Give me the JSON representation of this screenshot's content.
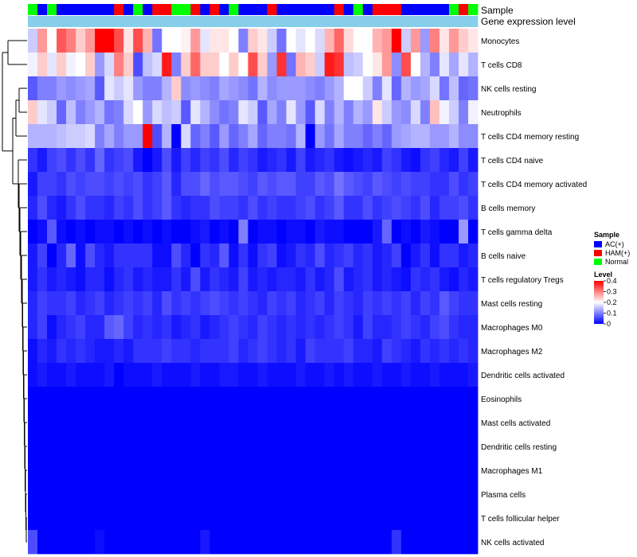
{
  "chart_data": {
    "type": "heatmap",
    "title": "",
    "annotation_tracks": [
      "Sample",
      "Gene expression level"
    ],
    "samples": [
      "N",
      "A",
      "N",
      "A",
      "A",
      "A",
      "A",
      "A",
      "A",
      "H",
      "A",
      "N",
      "A",
      "H",
      "H",
      "N",
      "N",
      "H",
      "A",
      "H",
      "A",
      "N",
      "A",
      "A",
      "A",
      "H",
      "A",
      "A",
      "A",
      "A",
      "A",
      "A",
      "H",
      "A",
      "N",
      "A",
      "H",
      "H",
      "H",
      "A",
      "A",
      "A",
      "A",
      "A",
      "N",
      "H",
      "N"
    ],
    "rows": [
      "Monocytes",
      "T cells CD8",
      "NK cells resting",
      "Neutrophils",
      "T cells CD4 memory resting",
      "T cells CD4 naive",
      "T cells CD4 memory activated",
      "B cells memory",
      "T cells gamma delta",
      "B cells naive",
      "T cells regulatory  Tregs",
      "Mast cells resting",
      "Macrophages M0",
      "Macrophages M2",
      "Dendritic cells activated",
      "Eosinophils",
      "Mast cells activated",
      "Dendritic cells resting",
      "Macrophages M1",
      "Plasma cells",
      "T cells follicular helper",
      "NK cells activated"
    ],
    "values": [
      [
        0.16,
        0.28,
        0.2,
        0.33,
        0.3,
        0.24,
        0.28,
        0.4,
        0.4,
        0.34,
        0.22,
        0.34,
        0.26,
        0.09,
        0.2,
        0.2,
        0.21,
        0.28,
        0.18,
        0.22,
        0.22,
        0.2,
        0.1,
        0.24,
        0.22,
        0.16,
        0.09,
        0.2,
        0.18,
        0.2,
        0.17,
        0.26,
        0.32,
        0.23,
        0.2,
        0.2,
        0.26,
        0.28,
        0.4,
        0.16,
        0.28,
        0.12,
        0.3,
        0.22,
        0.28,
        0.24,
        0.22
      ],
      [
        0.19,
        0.24,
        0.18,
        0.24,
        0.19,
        0.2,
        0.24,
        0.12,
        0.17,
        0.3,
        0.24,
        0.06,
        0.15,
        0.17,
        0.38,
        0.1,
        0.24,
        0.32,
        0.24,
        0.24,
        0.2,
        0.24,
        0.2,
        0.34,
        0.24,
        0.12,
        0.36,
        0.09,
        0.26,
        0.24,
        0.16,
        0.38,
        0.36,
        0.15,
        0.16,
        0.2,
        0.22,
        0.28,
        0.11,
        0.34,
        0.2,
        0.14,
        0.1,
        0.18,
        0.13,
        0.18,
        0.14
      ],
      [
        0.07,
        0.1,
        0.1,
        0.12,
        0.11,
        0.12,
        0.13,
        0.07,
        0.18,
        0.16,
        0.18,
        0.12,
        0.1,
        0.1,
        0.14,
        0.24,
        0.11,
        0.12,
        0.11,
        0.1,
        0.13,
        0.12,
        0.11,
        0.09,
        0.14,
        0.11,
        0.12,
        0.12,
        0.12,
        0.11,
        0.1,
        0.12,
        0.14,
        0.2,
        0.2,
        0.16,
        0.1,
        0.18,
        0.08,
        0.14,
        0.12,
        0.13,
        0.17,
        0.09,
        0.15,
        0.08,
        0.09
      ],
      [
        0.24,
        0.18,
        0.16,
        0.08,
        0.15,
        0.1,
        0.12,
        0.14,
        0.09,
        0.1,
        0.17,
        0.2,
        0.12,
        0.17,
        0.15,
        0.16,
        0.07,
        0.18,
        0.14,
        0.11,
        0.09,
        0.1,
        0.18,
        0.16,
        0.07,
        0.13,
        0.1,
        0.18,
        0.12,
        0.07,
        0.17,
        0.1,
        0.14,
        0.1,
        0.14,
        0.12,
        0.22,
        0.16,
        0.12,
        0.11,
        0.17,
        0.1,
        0.25,
        0.19,
        0.16,
        0.1,
        0.19
      ],
      [
        0.14,
        0.14,
        0.14,
        0.15,
        0.16,
        0.16,
        0.17,
        0.1,
        0.13,
        0.1,
        0.12,
        0.12,
        0.4,
        0.06,
        0.14,
        0.0,
        0.17,
        0.08,
        0.1,
        0.07,
        0.12,
        0.08,
        0.1,
        0.13,
        0.08,
        0.1,
        0.1,
        0.09,
        0.14,
        0.0,
        0.12,
        0.09,
        0.13,
        0.1,
        0.1,
        0.08,
        0.1,
        0.08,
        0.12,
        0.13,
        0.14,
        0.14,
        0.12,
        0.12,
        0.14,
        0.11,
        0.11
      ],
      [
        0.04,
        0.02,
        0.05,
        0.06,
        0.04,
        0.06,
        0.04,
        0.08,
        0.04,
        0.05,
        0.06,
        0.02,
        0.0,
        0.02,
        0.06,
        0.02,
        0.05,
        0.03,
        0.05,
        0.04,
        0.06,
        0.03,
        0.05,
        0.04,
        0.02,
        0.03,
        0.04,
        0.02,
        0.05,
        0.02,
        0.03,
        0.04,
        0.02,
        0.01,
        0.02,
        0.03,
        0.02,
        0.05,
        0.04,
        0.02,
        0.01,
        0.04,
        0.05,
        0.03,
        0.02,
        0.05,
        0.02
      ],
      [
        0.02,
        0.05,
        0.05,
        0.04,
        0.06,
        0.05,
        0.06,
        0.06,
        0.05,
        0.06,
        0.05,
        0.06,
        0.04,
        0.05,
        0.07,
        0.03,
        0.06,
        0.06,
        0.08,
        0.06,
        0.07,
        0.07,
        0.06,
        0.05,
        0.07,
        0.06,
        0.07,
        0.07,
        0.05,
        0.05,
        0.07,
        0.06,
        0.09,
        0.07,
        0.06,
        0.05,
        0.07,
        0.06,
        0.05,
        0.06,
        0.05,
        0.05,
        0.04,
        0.04,
        0.06,
        0.04,
        0.05
      ],
      [
        0.03,
        0.06,
        0.03,
        0.02,
        0.04,
        0.06,
        0.04,
        0.04,
        0.03,
        0.05,
        0.04,
        0.06,
        0.04,
        0.05,
        0.07,
        0.04,
        0.03,
        0.04,
        0.04,
        0.06,
        0.05,
        0.05,
        0.04,
        0.06,
        0.04,
        0.05,
        0.04,
        0.04,
        0.05,
        0.06,
        0.04,
        0.05,
        0.07,
        0.04,
        0.04,
        0.06,
        0.04,
        0.05,
        0.06,
        0.05,
        0.04,
        0.06,
        0.03,
        0.05,
        0.05,
        0.06,
        0.04
      ],
      [
        0.0,
        0.01,
        0.07,
        0.01,
        0.0,
        0.01,
        0.0,
        0.01,
        0.01,
        0.0,
        0.01,
        0.0,
        0.01,
        0.0,
        0.01,
        0.0,
        0.0,
        0.01,
        0.02,
        0.0,
        0.01,
        0.0,
        0.1,
        0.0,
        0.01,
        0.01,
        0.0,
        0.01,
        0.01,
        0.0,
        0.02,
        0.01,
        0.01,
        0.0,
        0.0,
        0.0,
        0.02,
        0.08,
        0.0,
        0.01,
        0.0,
        0.02,
        0.01,
        0.0,
        0.0,
        0.12,
        0.0
      ],
      [
        0.02,
        0.05,
        0.0,
        0.03,
        0.08,
        0.01,
        0.06,
        0.03,
        0.02,
        0.04,
        0.04,
        0.04,
        0.04,
        0.01,
        0.01,
        0.06,
        0.03,
        0.0,
        0.04,
        0.03,
        0.07,
        0.01,
        0.04,
        0.01,
        0.04,
        0.05,
        0.01,
        0.02,
        0.04,
        0.03,
        0.06,
        0.03,
        0.04,
        0.05,
        0.03,
        0.04,
        0.02,
        0.03,
        0.05,
        0.0,
        0.02,
        0.04,
        0.01,
        0.04,
        0.04,
        0.02,
        0.03
      ],
      [
        0.02,
        0.04,
        0.02,
        0.03,
        0.02,
        0.01,
        0.03,
        0.03,
        0.01,
        0.03,
        0.04,
        0.02,
        0.03,
        0.02,
        0.02,
        0.04,
        0.02,
        0.06,
        0.02,
        0.04,
        0.03,
        0.02,
        0.05,
        0.02,
        0.03,
        0.02,
        0.03,
        0.03,
        0.02,
        0.04,
        0.02,
        0.03,
        0.06,
        0.02,
        0.03,
        0.04,
        0.02,
        0.03,
        0.02,
        0.01,
        0.04,
        0.03,
        0.04,
        0.02,
        0.01,
        0.03,
        0.02
      ],
      [
        0.03,
        0.05,
        0.04,
        0.04,
        0.05,
        0.03,
        0.04,
        0.05,
        0.03,
        0.04,
        0.05,
        0.04,
        0.05,
        0.03,
        0.06,
        0.04,
        0.05,
        0.04,
        0.05,
        0.06,
        0.05,
        0.04,
        0.05,
        0.04,
        0.03,
        0.05,
        0.04,
        0.05,
        0.03,
        0.04,
        0.05,
        0.03,
        0.05,
        0.04,
        0.03,
        0.05,
        0.04,
        0.05,
        0.04,
        0.05,
        0.03,
        0.05,
        0.04,
        0.07,
        0.05,
        0.04,
        0.04
      ],
      [
        0.03,
        0.05,
        0.01,
        0.03,
        0.04,
        0.05,
        0.03,
        0.03,
        0.07,
        0.08,
        0.05,
        0.03,
        0.04,
        0.03,
        0.04,
        0.02,
        0.03,
        0.04,
        0.02,
        0.03,
        0.04,
        0.05,
        0.04,
        0.03,
        0.05,
        0.04,
        0.03,
        0.04,
        0.03,
        0.04,
        0.03,
        0.04,
        0.05,
        0.04,
        0.02,
        0.05,
        0.03,
        0.03,
        0.04,
        0.05,
        0.04,
        0.03,
        0.05,
        0.06,
        0.04,
        0.03,
        0.03
      ],
      [
        0.01,
        0.03,
        0.02,
        0.04,
        0.03,
        0.04,
        0.03,
        0.02,
        0.02,
        0.03,
        0.02,
        0.04,
        0.04,
        0.04,
        0.05,
        0.04,
        0.04,
        0.03,
        0.04,
        0.04,
        0.04,
        0.05,
        0.03,
        0.04,
        0.05,
        0.04,
        0.03,
        0.04,
        0.02,
        0.05,
        0.04,
        0.04,
        0.04,
        0.05,
        0.03,
        0.03,
        0.02,
        0.05,
        0.04,
        0.03,
        0.02,
        0.04,
        0.03,
        0.04,
        0.03,
        0.04,
        0.03
      ],
      [
        0.01,
        0.02,
        0.01,
        0.01,
        0.02,
        0.01,
        0.01,
        0.01,
        0.02,
        0.0,
        0.01,
        0.01,
        0.01,
        0.02,
        0.01,
        0.01,
        0.01,
        0.02,
        0.01,
        0.01,
        0.02,
        0.02,
        0.01,
        0.01,
        0.02,
        0.01,
        0.01,
        0.01,
        0.02,
        0.01,
        0.01,
        0.02,
        0.01,
        0.02,
        0.01,
        0.01,
        0.02,
        0.01,
        0.01,
        0.02,
        0.01,
        0.01,
        0.02,
        0.01,
        0.01,
        0.01,
        0.02
      ],
      [
        0,
        0,
        0,
        0,
        0,
        0,
        0,
        0,
        0,
        0,
        0,
        0,
        0,
        0,
        0,
        0,
        0,
        0,
        0,
        0,
        0,
        0,
        0,
        0,
        0,
        0,
        0,
        0,
        0,
        0,
        0,
        0,
        0,
        0,
        0,
        0,
        0,
        0,
        0,
        0,
        0,
        0,
        0,
        0,
        0,
        0,
        0
      ],
      [
        0,
        0,
        0,
        0,
        0,
        0,
        0,
        0,
        0,
        0,
        0,
        0,
        0,
        0,
        0,
        0,
        0,
        0,
        0,
        0,
        0,
        0,
        0,
        0,
        0,
        0,
        0,
        0,
        0,
        0,
        0,
        0,
        0,
        0,
        0,
        0,
        0,
        0,
        0,
        0,
        0,
        0,
        0,
        0,
        0,
        0,
        0
      ],
      [
        0,
        0,
        0,
        0,
        0,
        0,
        0,
        0,
        0,
        0,
        0,
        0,
        0,
        0,
        0,
        0,
        0,
        0,
        0,
        0,
        0,
        0,
        0,
        0,
        0,
        0,
        0,
        0,
        0,
        0,
        0,
        0,
        0,
        0,
        0,
        0,
        0,
        0,
        0,
        0,
        0,
        0,
        0,
        0,
        0,
        0,
        0
      ],
      [
        0,
        0,
        0,
        0,
        0,
        0,
        0,
        0,
        0,
        0,
        0,
        0,
        0,
        0,
        0,
        0,
        0,
        0,
        0,
        0,
        0,
        0,
        0,
        0,
        0,
        0,
        0,
        0,
        0,
        0,
        0,
        0,
        0,
        0,
        0,
        0,
        0,
        0,
        0,
        0,
        0,
        0,
        0,
        0,
        0,
        0,
        0
      ],
      [
        0,
        0,
        0,
        0,
        0,
        0,
        0,
        0,
        0,
        0,
        0,
        0,
        0,
        0,
        0,
        0,
        0,
        0,
        0,
        0,
        0,
        0,
        0,
        0,
        0,
        0,
        0,
        0,
        0,
        0,
        0,
        0,
        0,
        0,
        0,
        0,
        0,
        0,
        0,
        0,
        0,
        0,
        0,
        0,
        0,
        0,
        0
      ],
      [
        0,
        0,
        0,
        0,
        0,
        0,
        0,
        0,
        0,
        0,
        0,
        0,
        0,
        0,
        0,
        0,
        0,
        0,
        0,
        0,
        0,
        0,
        0,
        0,
        0,
        0,
        0,
        0,
        0,
        0,
        0,
        0,
        0,
        0,
        0,
        0,
        0,
        0,
        0,
        0,
        0,
        0,
        0,
        0,
        0,
        0,
        0
      ],
      [
        0.06,
        0.0,
        0.0,
        0.0,
        0.0,
        0.0,
        0.0,
        0.01,
        0.0,
        0.0,
        0.0,
        0.0,
        0.0,
        0.0,
        0.0,
        0.0,
        0.0,
        0.0,
        0.02,
        0.0,
        0.0,
        0.0,
        0.0,
        0.0,
        0.0,
        0.0,
        0.0,
        0.0,
        0.0,
        0.0,
        0.0,
        0.0,
        0.0,
        0.0,
        0.0,
        0.0,
        0.0,
        0.0,
        0.04,
        0.0,
        0.0,
        0.0,
        0.0,
        0.0,
        0.0,
        0.0,
        0.0
      ]
    ],
    "legend": {
      "sample_title": "Sample",
      "sample_groups": [
        {
          "key": "A",
          "label": "AC(+)",
          "color": "#0000ff"
        },
        {
          "key": "H",
          "label": "HAM(+)",
          "color": "#ff0000"
        },
        {
          "key": "N",
          "label": "Normal",
          "color": "#00ff00"
        }
      ],
      "level_title": "Level",
      "level_ticks": [
        "0.4",
        "0.3",
        "0.2",
        "0.1",
        "0"
      ],
      "level_tick_values": [
        0.4,
        0.3,
        0.2,
        0.1,
        0.0
      ],
      "level_range": [
        0,
        0.4
      ]
    },
    "colors": {
      "low": "#0000ff",
      "mid": "#ffffff",
      "high": "#ff0000",
      "track2": "#87ceeb"
    }
  }
}
